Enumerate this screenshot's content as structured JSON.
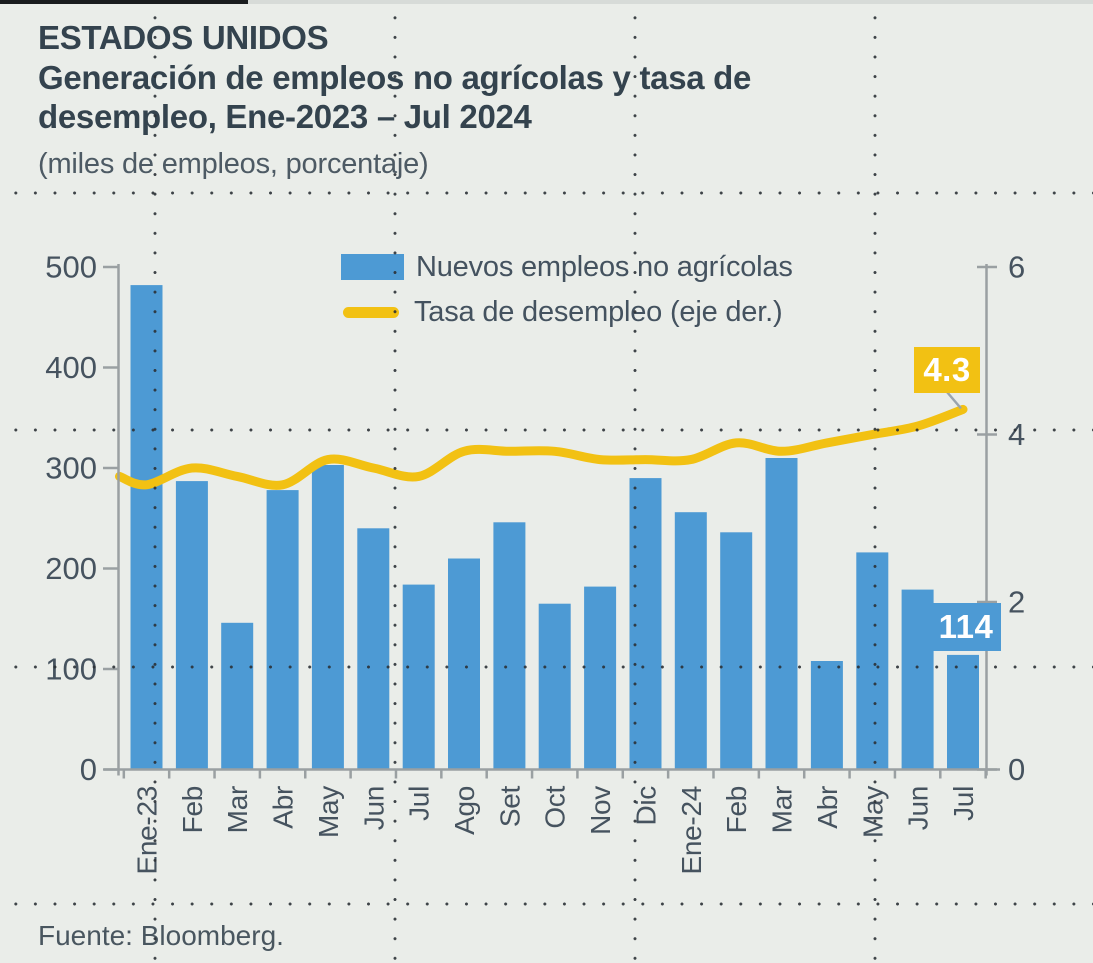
{
  "page": {
    "background": "#eaede9",
    "top_rule_black": "#191c1e",
    "top_rule_gray": "#d7dbd8",
    "text_dark": "#34434e",
    "text_axis": "#46535f"
  },
  "header": {
    "kicker": "ESTADOS UNIDOS",
    "title_line1": "Generación de empleos no agrícolas y tasa de",
    "title_line2": "desempleo, Ene-2023 – Jul 2024",
    "subtitle": "(miles de empleos, porcentaje)"
  },
  "legend": [
    {
      "label": "Nuevos empleos no agrícolas",
      "swatch": "bar",
      "color": "#4d9ad4"
    },
    {
      "label": "Tasa de desempleo (eje der.)",
      "swatch": "line",
      "color": "#f2c113"
    }
  ],
  "chart_data": {
    "type": "bar+line",
    "title": "Generación de empleos no agrícolas y tasa de desempleo, Ene-2023 – Jul 2024",
    "subtitle": "(miles de empleos, porcentaje)",
    "categories": [
      "Ene-23",
      "Feb",
      "Mar",
      "Abr",
      "May",
      "Jun",
      "Jul",
      "Ago",
      "Set",
      "Oct",
      "Nov",
      "Dic",
      "Ene-24",
      "Feb",
      "Mar",
      "Abr",
      "May",
      "Jun",
      "Jul"
    ],
    "series": [
      {
        "name": "Nuevos empleos no agrícolas",
        "type": "bar",
        "axis": "left",
        "color": "#4d9ad4",
        "values": [
          482,
          287,
          146,
          278,
          303,
          240,
          184,
          210,
          246,
          165,
          182,
          290,
          256,
          236,
          310,
          108,
          216,
          179,
          114
        ]
      },
      {
        "name": "Tasa de desempleo (eje der.)",
        "type": "line",
        "axis": "right",
        "color": "#f2c113",
        "values": [
          3.4,
          3.6,
          3.5,
          3.4,
          3.7,
          3.6,
          3.5,
          3.8,
          3.8,
          3.8,
          3.7,
          3.7,
          3.7,
          3.9,
          3.8,
          3.9,
          4.0,
          4.1,
          4.3
        ]
      }
    ],
    "left_axis": {
      "min": 0,
      "max": 500,
      "ticks": [
        0,
        100,
        200,
        300,
        400,
        500
      ]
    },
    "right_axis": {
      "min": 0,
      "max": 6,
      "ticks": [
        0,
        2,
        4,
        6
      ]
    },
    "grid": "dotted-page-grid",
    "legend_position": "top-center",
    "annotations": [
      {
        "text": "4.3",
        "series": "Tasa de desempleo (eje der.)",
        "point": "Jul 2024",
        "style": "yellow-box"
      },
      {
        "text": "114",
        "series": "Nuevos empleos no agrícolas",
        "point": "Jul 2024",
        "style": "blue-box"
      }
    ]
  },
  "source": "Fuente: Bloomberg."
}
